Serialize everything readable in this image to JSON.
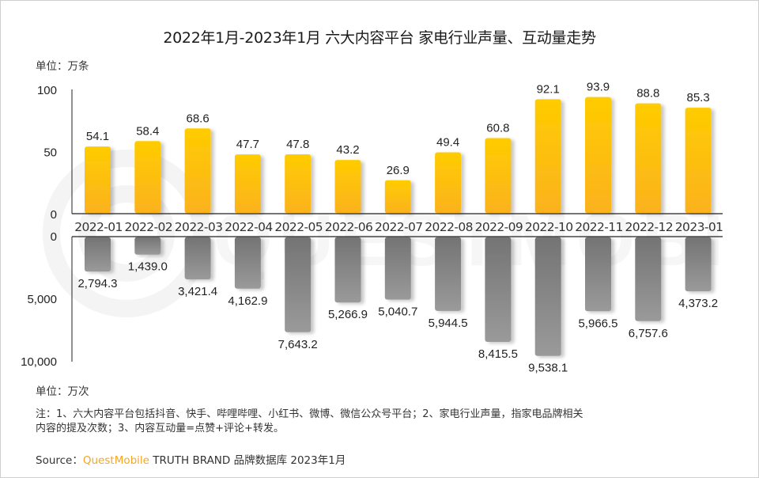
{
  "title": "2022年1月-2023年1月 六大内容平台 家电行业声量、互动量走势",
  "unit_top": "单位：万条",
  "unit_bottom": "单位：万次",
  "note_line1": "注：1、六大内容平台包括抖音、快手、哔哩哔哩、小红书、微博、微信公众号平台；2、家电行业声量，指家电品牌相关",
  "note_line2": "内容的提及次数；3、内容互动量=点赞+评论+转发。",
  "source_prefix": "Source：",
  "source_brand": "QuestMobile",
  "source_suffix": " TRUTH BRAND 品牌数据库 2023年1月",
  "watermark_text": "QUESTMOBILE",
  "colors": {
    "volume_bar_top": "#FFCC00",
    "volume_bar_bottom": "#FBB21E",
    "interaction_bar_top": "#747474",
    "interaction_bar_bottom": "#9A9A9A",
    "source_brand": "#F5A623"
  },
  "chart_data": [
    {
      "type": "bar",
      "title": "家电行业声量",
      "unit": "万条",
      "categories": [
        "2022-01",
        "2022-02",
        "2022-03",
        "2022-04",
        "2022-05",
        "2022-06",
        "2022-07",
        "2022-08",
        "2022-09",
        "2022-10",
        "2022-11",
        "2022-12",
        "2023-01"
      ],
      "values": [
        54.1,
        58.4,
        68.6,
        47.7,
        47.8,
        43.2,
        26.9,
        49.4,
        60.8,
        92.1,
        93.9,
        88.8,
        85.3
      ],
      "labels": [
        "54.1",
        "58.4",
        "68.6",
        "47.7",
        "47.8",
        "43.2",
        "26.9",
        "49.4",
        "60.8",
        "92.1",
        "93.9",
        "88.8",
        "85.3"
      ],
      "ylim": [
        0,
        100
      ],
      "yticks": [
        "100",
        "50",
        "0"
      ],
      "ytick_values": [
        100,
        50,
        0
      ],
      "direction": "up",
      "grid": false
    },
    {
      "type": "bar",
      "title": "内容互动量",
      "unit": "万次",
      "categories": [
        "2022-01",
        "2022-02",
        "2022-03",
        "2022-04",
        "2022-05",
        "2022-06",
        "2022-07",
        "2022-08",
        "2022-09",
        "2022-10",
        "2022-11",
        "2022-12",
        "2023-01"
      ],
      "values": [
        2794.3,
        1439.0,
        3421.4,
        4162.9,
        7643.2,
        5266.9,
        5040.7,
        5944.5,
        8415.5,
        9538.1,
        5966.5,
        6757.6,
        4373.2
      ],
      "labels": [
        "2,794.3",
        "1,439.0",
        "3,421.4",
        "4,162.9",
        "7,643.2",
        "5,266.9",
        "5,040.7",
        "5,944.5",
        "8,415.5",
        "9,538.1",
        "5,966.5",
        "6,757.6",
        "4,373.2"
      ],
      "ylim": [
        0,
        10000
      ],
      "yticks": [
        "0",
        "5,000",
        "10,000"
      ],
      "ytick_values": [
        0,
        5000,
        10000
      ],
      "direction": "down",
      "grid": false
    }
  ]
}
